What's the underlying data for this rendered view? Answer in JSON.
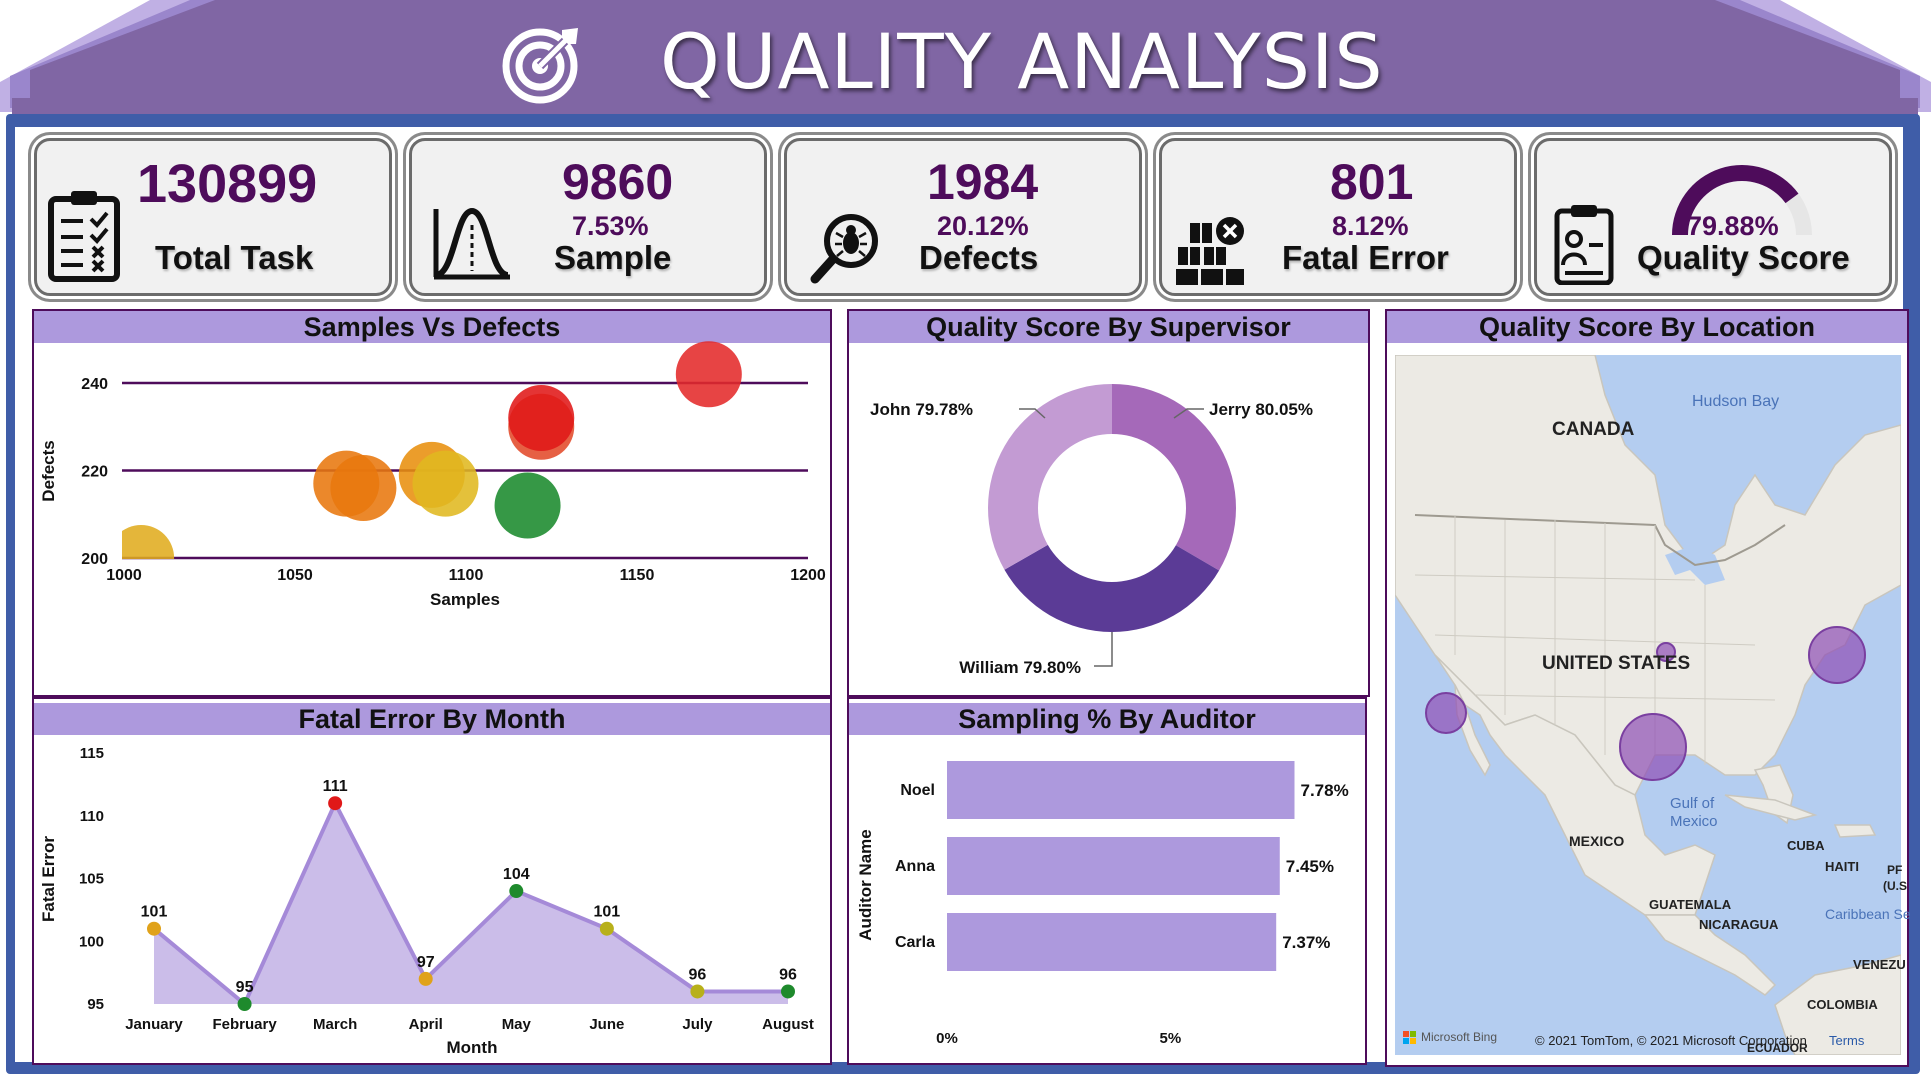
{
  "header": {
    "title": "QUALITY ANALYSIS"
  },
  "kpis": [
    {
      "value": "130899",
      "percent": "",
      "label": "Total Task",
      "icon": "checklist-icon"
    },
    {
      "value": "9860",
      "percent": "7.53%",
      "label": "Sample",
      "icon": "bell-curve-icon"
    },
    {
      "value": "1984",
      "percent": "20.12%",
      "label": "Defects",
      "icon": "bug-magnifier-icon"
    },
    {
      "value": "801",
      "percent": "8.12%",
      "label": "Fatal Error",
      "icon": "boxes-error-icon"
    },
    {
      "value": "",
      "percent": "79.88%",
      "label": "Quality Score",
      "icon": "clipboard-person-icon",
      "gauge_fraction": 0.7988
    }
  ],
  "panels": {
    "samples_vs_defects": "Samples Vs Defects",
    "quality_by_supervisor": "Quality Score By Supervisor",
    "quality_by_location": "Quality Score By Location",
    "fatal_by_month": "Fatal Error By Month",
    "sampling_by_auditor": "Sampling % By Auditor"
  },
  "colors": {
    "purple_dark": "#4e0c5b",
    "title_bar": "#ad99dd",
    "banner": "#8066a4",
    "frame": "#3f5da8",
    "bar": "#ad99dd"
  },
  "chart_data": [
    {
      "id": "samples_vs_defects",
      "type": "scatter",
      "title": "Samples Vs Defects",
      "xlabel": "Samples",
      "ylabel": "Defects",
      "xlim": [
        1000,
        1200
      ],
      "ylim": [
        200,
        240
      ],
      "xticks": [
        "1000",
        "1050",
        "1100",
        "1150",
        "1200"
      ],
      "yticks": [
        "200",
        "220",
        "240"
      ],
      "grid": true,
      "points": [
        {
          "x": 1005,
          "y": 200,
          "color": "#e0ac1f"
        },
        {
          "x": 1065,
          "y": 217,
          "color": "#e8770e"
        },
        {
          "x": 1070,
          "y": 216,
          "color": "#e8770e"
        },
        {
          "x": 1090,
          "y": 219,
          "color": "#e8900e"
        },
        {
          "x": 1094,
          "y": 217,
          "color": "#e0b820"
        },
        {
          "x": 1118,
          "y": 212,
          "color": "#1a8a2c"
        },
        {
          "x": 1122,
          "y": 230,
          "color": "#e24a2a"
        },
        {
          "x": 1122,
          "y": 232,
          "color": "#e01818"
        },
        {
          "x": 1171,
          "y": 242,
          "color": "#e42a2a"
        }
      ]
    },
    {
      "id": "quality_by_supervisor",
      "type": "pie",
      "title": "Quality Score By Supervisor",
      "slices": [
        {
          "name": "Jerry",
          "label": "Jerry 80.05%",
          "value": 80.05,
          "color": "#a569b9"
        },
        {
          "name": "William",
          "label": "William 79.80%",
          "value": 79.8,
          "color": "#5b3b96"
        },
        {
          "name": "John",
          "label": "John 79.78%",
          "value": 79.78,
          "color": "#c39bd3"
        }
      ]
    },
    {
      "id": "fatal_by_month",
      "type": "area",
      "title": "Fatal Error By Month",
      "xlabel": "Month",
      "ylabel": "Fatal Error",
      "ylim": [
        95,
        115
      ],
      "yticks": [
        "95",
        "100",
        "105",
        "110",
        "115"
      ],
      "categories": [
        "January",
        "February",
        "March",
        "April",
        "May",
        "June",
        "July",
        "August"
      ],
      "values": [
        101,
        95,
        111,
        97,
        104,
        101,
        96,
        96
      ],
      "point_colors": [
        "#e0a21a",
        "#1e8a2c",
        "#e01818",
        "#e0a21a",
        "#1e8a2c",
        "#b8b01a",
        "#b8b01a",
        "#1e8a2c"
      ]
    },
    {
      "id": "sampling_by_auditor",
      "type": "bar",
      "title": "Sampling % By Auditor",
      "ylabel": "Auditor Name",
      "xticks": [
        "0%",
        "5%"
      ],
      "xlim": [
        0,
        9.0
      ],
      "categories": [
        "Noel",
        "Anna",
        "Carla"
      ],
      "values": [
        7.78,
        7.45,
        7.37
      ],
      "labels": [
        "7.78%",
        "7.45%",
        "7.37%"
      ]
    }
  ],
  "map": {
    "labels": [
      "CANADA",
      "UNITED STATES",
      "MEXICO",
      "CUBA",
      "HAITI",
      "GUATEMALA",
      "NICARAGUA",
      "VENEZU",
      "COLOMBIA",
      "ECUADOR",
      "PF",
      "(U.S"
    ],
    "water": [
      "Hudson Bay",
      "Gulf of",
      "Mexico",
      "Caribbean Se"
    ],
    "attribution": "© 2021 TomTom, © 2021 Microsoft Corporation",
    "terms": "Terms",
    "brand": "Microsoft Bing",
    "locations": [
      {
        "name": "Los Angeles",
        "size": "medium"
      },
      {
        "name": "Houston",
        "size": "large"
      },
      {
        "name": "Chicago",
        "size": "small"
      },
      {
        "name": "New York",
        "size": "large"
      }
    ]
  }
}
